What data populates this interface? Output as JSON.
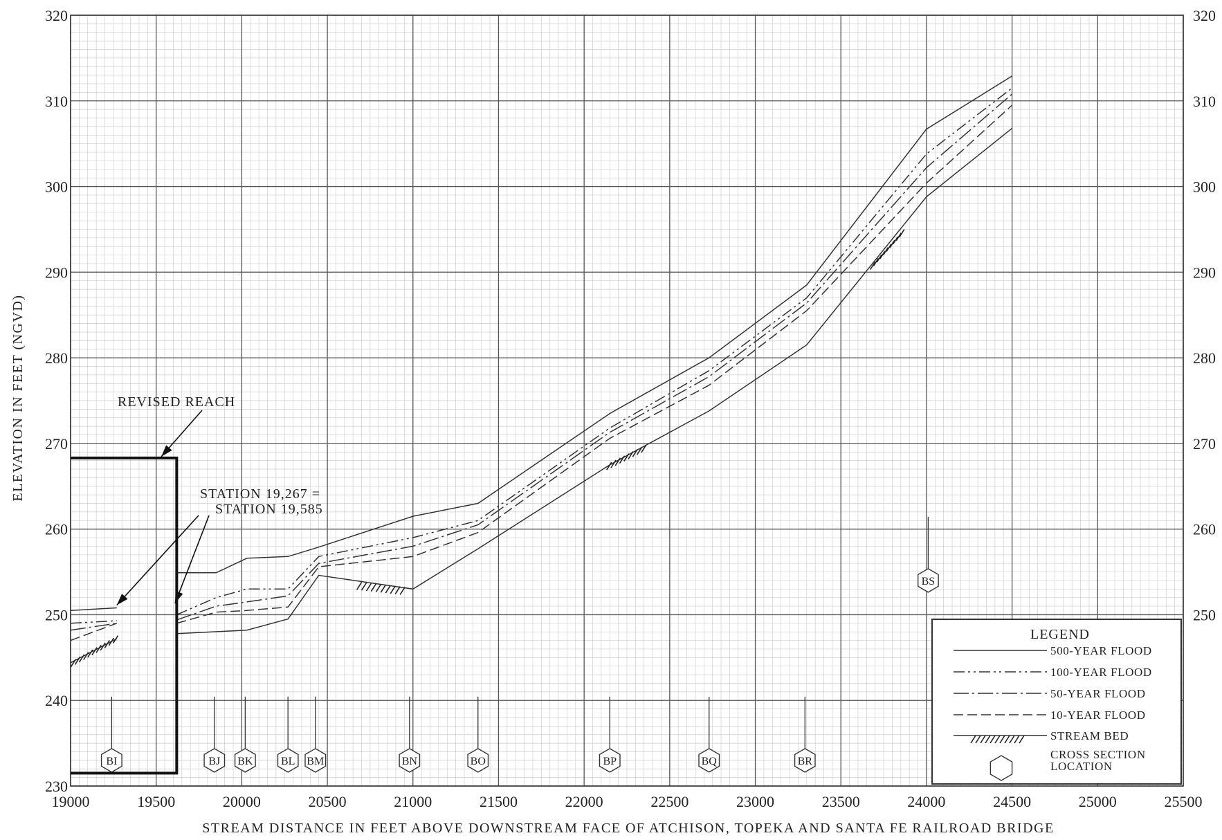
{
  "chart_data": {
    "type": "line",
    "title": "",
    "xlabel": "STREAM DISTANCE IN FEET ABOVE DOWNSTREAM FACE OF ATCHISON, TOPEKA AND SANTA FE RAILROAD BRIDGE",
    "ylabel": "ELEVATION IN FEET (NGVD)",
    "xlim": [
      19000,
      25500
    ],
    "ylim": [
      230,
      320
    ],
    "x_ticks": [
      19000,
      19500,
      20000,
      20500,
      21000,
      21500,
      22000,
      22500,
      23000,
      23500,
      24000,
      24500,
      25000,
      25500
    ],
    "y_ticks": [
      230,
      240,
      250,
      260,
      270,
      280,
      290,
      300,
      310,
      320
    ],
    "y_ticks_right": [
      250,
      260,
      270,
      280,
      290,
      300,
      310,
      320
    ],
    "grid": true,
    "series": [
      {
        "name": "500-YEAR FLOOD",
        "style": "solid",
        "segments": [
          {
            "x": [
              19000,
              19270
            ],
            "y": [
              250.5,
              250.8
            ]
          },
          {
            "x": [
              19620,
              19850,
              20030,
              20270,
              20450,
              21000,
              21380,
              22150,
              22730,
              23300,
              24000,
              24500
            ],
            "y": [
              254.9,
              254.9,
              256.6,
              256.8,
              257.9,
              261.5,
              263.0,
              273.5,
              280.0,
              288.5,
              306.7,
              312.9
            ]
          }
        ]
      },
      {
        "name": "100-YEAR FLOOD",
        "style": "dash-dot-dot",
        "segments": [
          {
            "x": [
              19000,
              19270
            ],
            "y": [
              249.0,
              249.3
            ]
          },
          {
            "x": [
              19620,
              19850,
              20030,
              20270,
              20450,
              21000,
              21380,
              22150,
              22730,
              23300,
              24000,
              24500
            ],
            "y": [
              250.0,
              252.0,
              253.0,
              253.0,
              256.8,
              259.0,
              261.0,
              271.8,
              278.5,
              287.0,
              303.8,
              311.5
            ]
          }
        ]
      },
      {
        "name": "50-YEAR FLOOD",
        "style": "dash-dot",
        "segments": [
          {
            "x": [
              19000,
              19270
            ],
            "y": [
              248.2,
              249.0
            ]
          },
          {
            "x": [
              19620,
              19850,
              20030,
              20270,
              20450,
              21000,
              21380,
              22150,
              22730,
              23300,
              24000,
              24500
            ],
            "y": [
              249.4,
              251.0,
              251.5,
              252.2,
              256.0,
              258.0,
              260.5,
              271.3,
              277.8,
              286.4,
              302.2,
              310.8
            ]
          }
        ]
      },
      {
        "name": "10-YEAR FLOOD",
        "style": "dashed",
        "segments": [
          {
            "x": [
              19000,
              19270
            ],
            "y": [
              247.0,
              249.0
            ]
          },
          {
            "x": [
              19620,
              19850,
              20030,
              20270,
              20450,
              21000,
              21380,
              22150,
              22730,
              23300,
              24000,
              24500
            ],
            "y": [
              249.0,
              250.3,
              250.5,
              250.9,
              255.6,
              256.8,
              259.6,
              270.6,
              276.8,
              285.5,
              300.4,
              309.5
            ]
          }
        ]
      },
      {
        "name": "STREAM BED",
        "style": "solid",
        "segments": [
          {
            "x": [
              19000,
              19270
            ],
            "y": [
              244.4,
              247.2
            ]
          },
          {
            "x": [
              19620,
              20030,
              20270,
              20450,
              21000,
              21380,
              22150,
              22730,
              23300,
              24000,
              24500
            ],
            "y": [
              247.8,
              248.2,
              249.5,
              254.6,
              253.0,
              257.7,
              267.5,
              273.8,
              281.5,
              298.8,
              306.8
            ]
          }
        ]
      }
    ],
    "stream_bed_hatch": [
      {
        "x": [
          19030,
          19280
        ],
        "y": [
          244.8,
          247.6
        ]
      },
      {
        "x": [
          20700,
          20970
        ],
        "y": [
          253.8,
          253.2
        ]
      },
      {
        "x": [
          22160,
          22380
        ],
        "y": [
          267.8,
          270.0
        ]
      },
      {
        "x": [
          23700,
          23880
        ],
        "y": [
          291.2,
          295.2
        ]
      }
    ],
    "cross_sections": [
      {
        "label": "BI",
        "x": 19240,
        "elev": 233
      },
      {
        "label": "BJ",
        "x": 19840,
        "elev": 233
      },
      {
        "label": "BK",
        "x": 20020,
        "elev": 233
      },
      {
        "label": "BL",
        "x": 20270,
        "elev": 233
      },
      {
        "label": "BM",
        "x": 20430,
        "elev": 233
      },
      {
        "label": "BN",
        "x": 20980,
        "elev": 233
      },
      {
        "label": "BO",
        "x": 21380,
        "elev": 233
      },
      {
        "label": "BP",
        "x": 22150,
        "elev": 233
      },
      {
        "label": "BQ",
        "x": 22730,
        "elev": 233
      },
      {
        "label": "BR",
        "x": 23290,
        "elev": 233
      },
      {
        "label": "BS",
        "x": 24010,
        "elev": 254
      }
    ],
    "revised_reach": {
      "x": [
        19000,
        19620
      ],
      "y": [
        231.5,
        268.3
      ]
    },
    "legend_placement": "bottom-right"
  },
  "annotations": {
    "revised_reach": "REVISED REACH",
    "station_line1": "STATION 19,267 =",
    "station_line2": "STATION 19,585"
  },
  "legend": {
    "title": "LEGEND",
    "items": [
      {
        "label": "500-YEAR FLOOD",
        "style": "solid"
      },
      {
        "label": "100-YEAR FLOOD",
        "style": "dash-dot-dot"
      },
      {
        "label": "50-YEAR FLOOD",
        "style": "dash-dot"
      },
      {
        "label": "10-YEAR FLOOD",
        "style": "dashed"
      },
      {
        "label": "STREAM BED",
        "style": "hatch"
      },
      {
        "label_lines": [
          "CROSS SECTION",
          "LOCATION"
        ],
        "style": "hexagon"
      }
    ]
  }
}
